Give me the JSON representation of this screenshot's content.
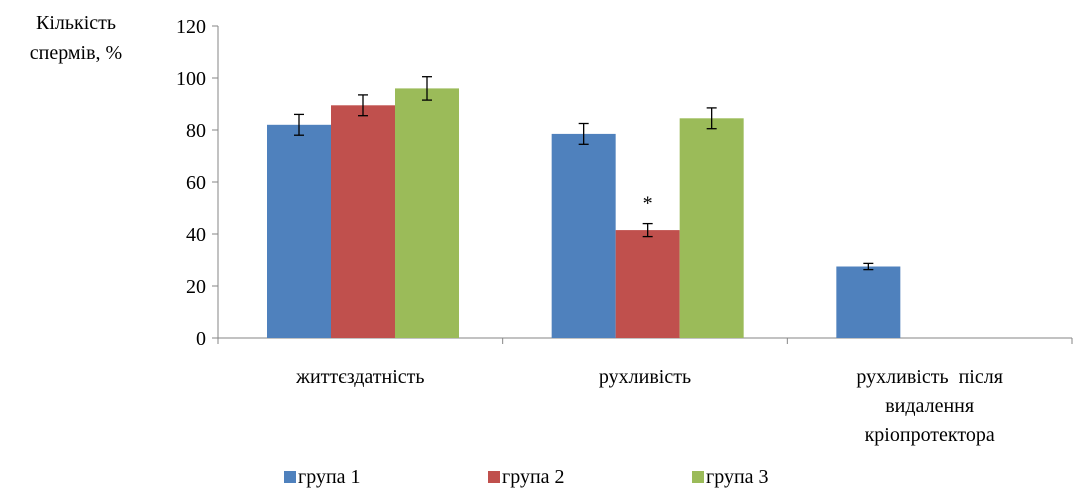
{
  "chart_data": {
    "type": "bar",
    "ylabel_lines": [
      "Кількість",
      "спермів, %"
    ],
    "ylim": [
      0,
      120
    ],
    "yticks": [
      0,
      20,
      40,
      60,
      80,
      100,
      120
    ],
    "grid": false,
    "legend_position": "bottom",
    "categories": [
      [
        "життєздатність"
      ],
      [
        "рухливість"
      ],
      [
        "рухливість  після",
        "видалення",
        "кріопротектора"
      ]
    ],
    "series": [
      {
        "name": "група 1",
        "color": "#4f81bd",
        "values": [
          82,
          78.5,
          27.5
        ],
        "errors": [
          4,
          4,
          1.2
        ]
      },
      {
        "name": "група 2",
        "color": "#c0504d",
        "values": [
          89.5,
          41.5,
          null
        ],
        "errors": [
          4,
          2.5,
          null
        ]
      },
      {
        "name": "група 3",
        "color": "#9bbb59",
        "values": [
          96,
          84.5,
          null
        ],
        "errors": [
          4.5,
          4,
          null
        ]
      }
    ],
    "annotations": [
      {
        "series": 1,
        "category": 1,
        "text": "*"
      }
    ]
  }
}
